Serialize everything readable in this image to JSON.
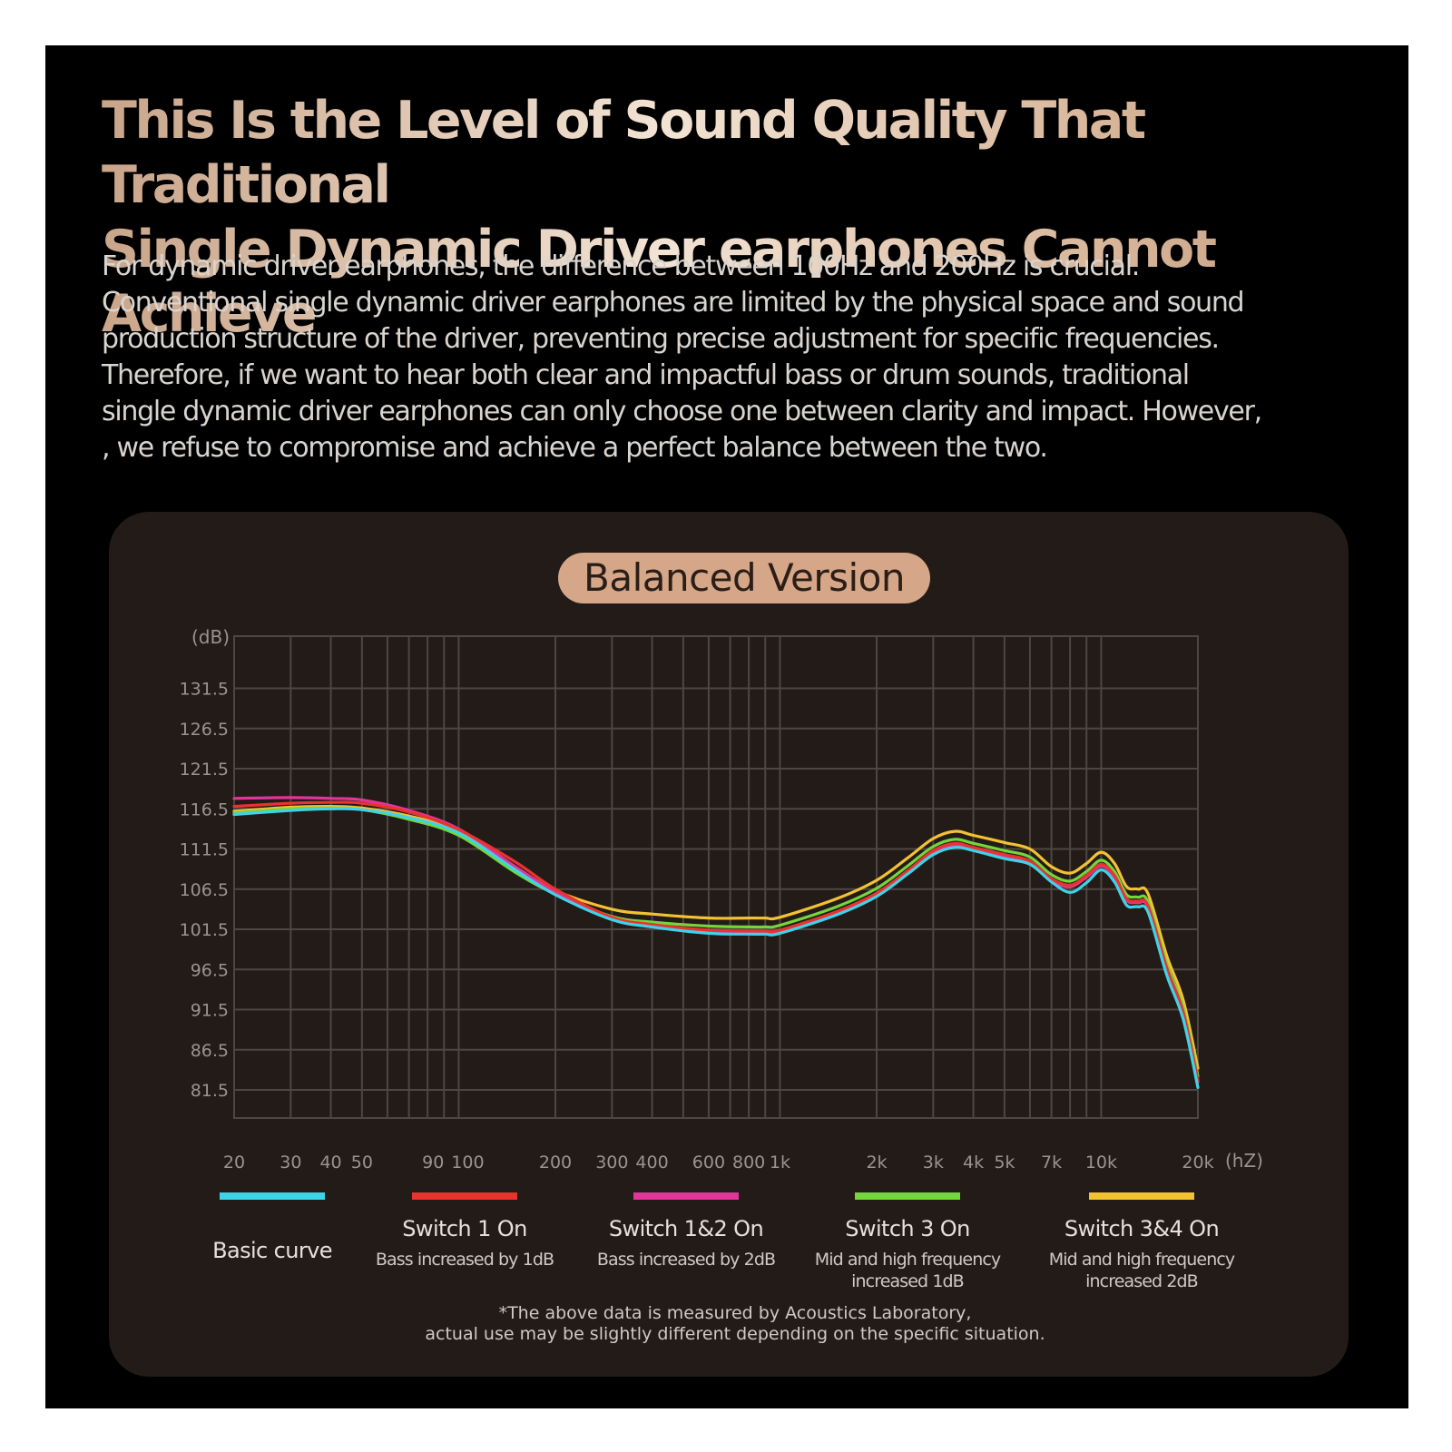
{
  "headline": "This Is the Level of Sound Quality That Traditional\nSingle Dynamic Driver earphones Cannot Achieve",
  "body_text": "For dynamic driver earphones, the difference between 100Hz and 200Hz is crucial.\nConventional single dynamic driver earphones are limited by the physical space and sound\nproduction structure of the driver, preventing precise adjustment for specific frequencies.\nTherefore, if we want to hear both clear and impactful bass or drum sounds, traditional\nsingle dynamic driver earphones can only choose one between clarity and impact. However,\n, we refuse to compromise and achieve a perfect balance between the two.",
  "footnote": "*The above data is measured by  Acoustics Laboratory,\nactual use may be slightly different depending on the specific situation.",
  "colors": {
    "background": "#000000",
    "panel": "#231b17",
    "badge": "#d5a688",
    "grid": "#4e4641"
  },
  "chart_data": {
    "type": "line",
    "title": "Balanced Version",
    "xlabel": "(hZ)",
    "ylabel": "(dB)",
    "x_scale": "log",
    "xlim": [
      20,
      20000
    ],
    "ylim": [
      78,
      138
    ],
    "grid": true,
    "legend_position": "bottom",
    "x_ticks": [
      {
        "value": 20,
        "label": "20"
      },
      {
        "value": 30,
        "label": "30"
      },
      {
        "value": 40,
        "label": "40"
      },
      {
        "value": 50,
        "label": "50"
      },
      {
        "value": 90,
        "label": "90"
      },
      {
        "value": 100,
        "label": "100"
      },
      {
        "value": 200,
        "label": "200"
      },
      {
        "value": 300,
        "label": "300"
      },
      {
        "value": 400,
        "label": "400"
      },
      {
        "value": 600,
        "label": "600"
      },
      {
        "value": 800,
        "label": "800"
      },
      {
        "value": 1000,
        "label": "1k"
      },
      {
        "value": 2000,
        "label": "2k"
      },
      {
        "value": 3000,
        "label": "3k"
      },
      {
        "value": 4000,
        "label": "4k"
      },
      {
        "value": 5000,
        "label": "5k"
      },
      {
        "value": 7000,
        "label": "7k"
      },
      {
        "value": 10000,
        "label": "10k"
      },
      {
        "value": 20000,
        "label": "20k"
      }
    ],
    "x_gridlines": [
      20,
      30,
      40,
      50,
      60,
      70,
      80,
      90,
      100,
      200,
      300,
      400,
      500,
      600,
      700,
      800,
      900,
      1000,
      2000,
      3000,
      4000,
      5000,
      6000,
      7000,
      8000,
      9000,
      10000,
      20000
    ],
    "y_ticks": [
      131.5,
      126.5,
      121.5,
      116.5,
      111.5,
      106.5,
      101.5,
      96.5,
      91.5,
      86.5,
      81.5
    ],
    "x": [
      20,
      30,
      40,
      50,
      70,
      100,
      150,
      200,
      300,
      400,
      600,
      800,
      900,
      1000,
      1500,
      2000,
      2500,
      3000,
      3500,
      4000,
      5000,
      6000,
      7000,
      8000,
      9000,
      10000,
      11000,
      12000,
      13000,
      14000,
      16000,
      18000,
      20000
    ],
    "series": [
      {
        "name": "Basic curve",
        "desc": "",
        "color": "#3fd3e8",
        "values": [
          115.8,
          116.3,
          116.5,
          116.4,
          115.4,
          113.5,
          108.9,
          105.8,
          102.7,
          101.8,
          101.0,
          100.9,
          100.9,
          101.0,
          103.3,
          105.6,
          108.4,
          110.8,
          111.7,
          111.3,
          110.3,
          109.6,
          107.4,
          106.1,
          107.3,
          108.9,
          107.4,
          104.5,
          104.3,
          103.6,
          95.8,
          90.3,
          81.8
        ]
      },
      {
        "name": "Switch 1 On",
        "desc": "Bass increased by 1dB",
        "color": "#e8332f",
        "values": [
          116.8,
          117.2,
          117.3,
          117.2,
          116.1,
          113.9,
          109.9,
          106.5,
          103.0,
          102.1,
          101.4,
          101.3,
          101.3,
          101.4,
          103.7,
          106.0,
          108.8,
          111.3,
          112.2,
          111.7,
          110.8,
          110.0,
          107.8,
          107.0,
          108.2,
          109.6,
          108.2,
          105.3,
          105.0,
          104.4,
          96.7,
          91.2,
          82.7
        ]
      },
      {
        "name": "Switch 1&2 On",
        "desc": "Bass increased by 2dB",
        "color": "#e0369a",
        "values": [
          117.8,
          117.9,
          117.8,
          117.6,
          116.3,
          114.0,
          109.3,
          106.2,
          102.8,
          101.9,
          101.2,
          101.1,
          101.1,
          101.2,
          103.5,
          105.8,
          108.6,
          111.1,
          112.0,
          111.5,
          110.6,
          109.8,
          107.6,
          106.8,
          108.0,
          109.4,
          108.0,
          105.1,
          104.8,
          104.2,
          96.5,
          91.0,
          82.5
        ]
      },
      {
        "name": "Switch 3 On",
        "desc": "Mid and high frequency\nincreased 1dB",
        "color": "#72d63c",
        "values": [
          116.0,
          116.5,
          116.6,
          116.4,
          115.2,
          113.2,
          108.6,
          105.9,
          103.1,
          102.4,
          101.9,
          101.8,
          101.8,
          102.0,
          104.3,
          106.6,
          109.4,
          111.8,
          112.7,
          112.2,
          111.3,
          110.5,
          108.3,
          107.5,
          108.7,
          110.1,
          108.7,
          105.8,
          105.5,
          104.9,
          97.2,
          91.7,
          83.2
        ]
      },
      {
        "name": "Switch 3&4 On",
        "desc": "Mid and high frequency\nincreased 2dB",
        "color": "#f2c233",
        "values": [
          116.2,
          116.7,
          116.8,
          116.6,
          115.6,
          113.7,
          109.2,
          106.3,
          104.0,
          103.4,
          102.9,
          102.9,
          102.9,
          103.0,
          105.3,
          107.6,
          110.4,
          112.8,
          113.7,
          113.2,
          112.3,
          111.5,
          109.3,
          108.5,
          109.7,
          111.1,
          109.7,
          106.8,
          106.5,
          105.9,
          98.2,
          92.7,
          84.2
        ]
      }
    ]
  }
}
